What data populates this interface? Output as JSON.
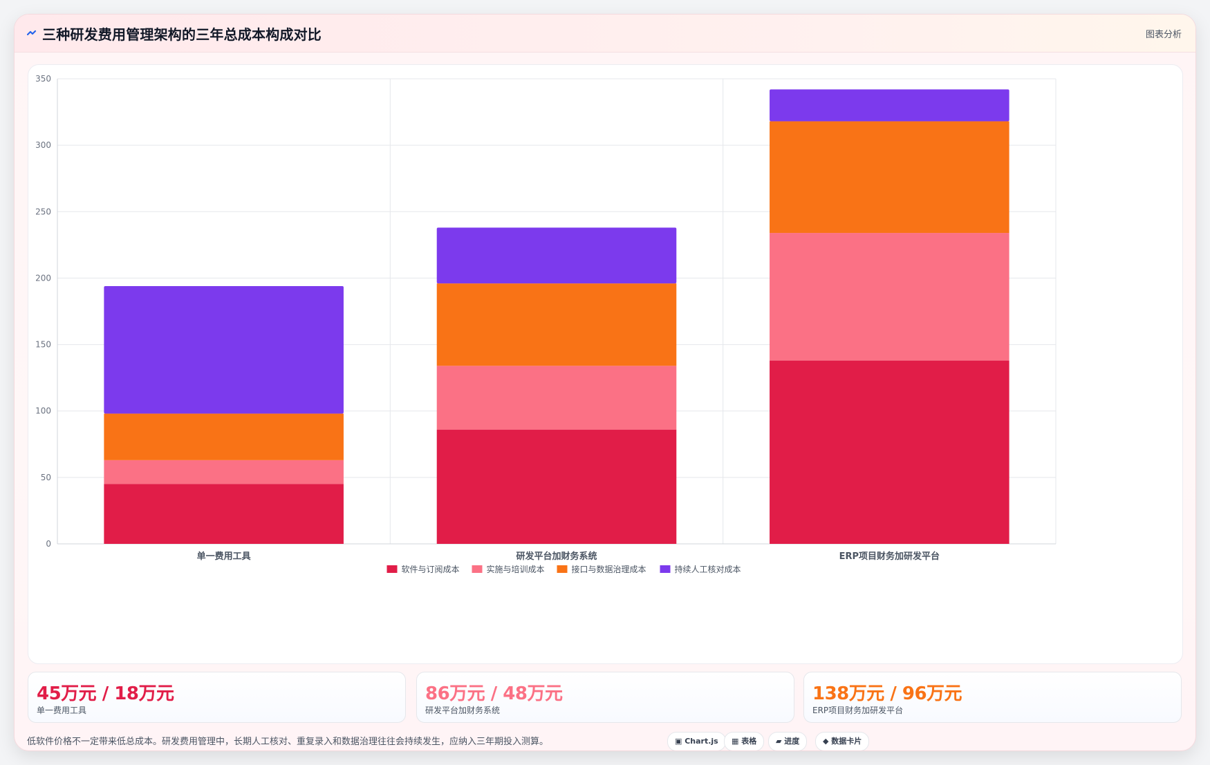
{
  "header": {
    "title": "三种研发费用管理架构的三年总成本构成对比",
    "action_label": "图表分析"
  },
  "chart_data": {
    "type": "bar",
    "stacked": true,
    "title": "",
    "xlabel": "",
    "ylabel": "",
    "categories": [
      "单一费用工具",
      "研发平台加财务系统",
      "ERP项目财务加研发平台"
    ],
    "ylim": [
      0,
      350
    ],
    "yticks": [
      0,
      50,
      100,
      150,
      200,
      250,
      300,
      350
    ],
    "grid": true,
    "legend_position": "bottom",
    "series": [
      {
        "name": "软件与订阅成本",
        "color": "#e11d48",
        "values": [
          45,
          86,
          138
        ]
      },
      {
        "name": "实施与培训成本",
        "color": "#fb7185",
        "values": [
          18,
          48,
          96
        ]
      },
      {
        "name": "接口与数据治理成本",
        "color": "#f97316",
        "values": [
          35,
          62,
          84
        ]
      },
      {
        "name": "持续人工核对成本",
        "color": "#7c3aed",
        "values": [
          96,
          42,
          24
        ]
      }
    ]
  },
  "stats": [
    {
      "value": "45万元 / 18万元",
      "label": "单一费用工具",
      "color": "#e11d48"
    },
    {
      "value": "86万元 / 48万元",
      "label": "研发平台加财务系统",
      "color": "#fb7185"
    },
    {
      "value": "138万元 / 96万元",
      "label": "ERP项目财务加研发平台",
      "color": "#f97316"
    }
  ],
  "footer": {
    "note": "低软件价格不一定带来低总成本。研发费用管理中，长期人工核对、重复录入和数据治理往往会持续发生，应纳入三年期投入测算。",
    "badges": [
      "▣ Chart.js",
      "▦ 表格",
      "▰ 进度",
      "◆ 数据卡片"
    ]
  }
}
